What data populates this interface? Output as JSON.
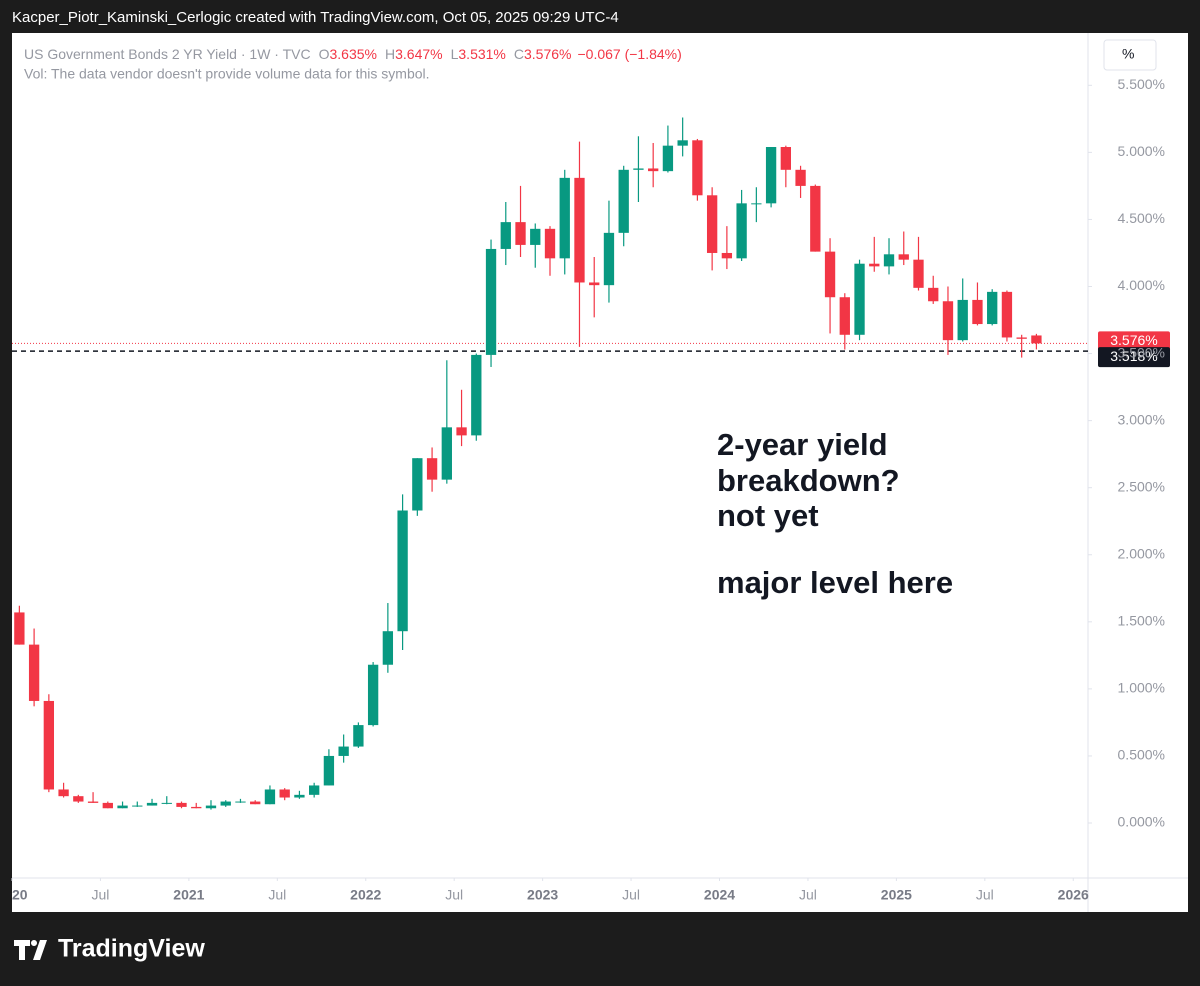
{
  "header": {
    "attribution": "Kacper_Piotr_Kaminski_Cerlogic created with TradingView.com, Oct 05, 2025 09:29 UTC-4"
  },
  "footer": {
    "brand": "TradingView"
  },
  "chart_data": {
    "type": "candlestick",
    "symbol": "US Government Bonds 2 YR Yield · 1W · TVC",
    "ohlc_legend": [
      {
        "key": "O",
        "text": "3.635%"
      },
      {
        "key": "H",
        "text": "3.647%"
      },
      {
        "key": "L",
        "text": "3.531%"
      },
      {
        "key": "C",
        "text": "3.576%"
      }
    ],
    "change_text": "−0.067 (−1.84%)",
    "volume_note": "Vol: The data vendor doesn't provide volume data for this symbol.",
    "axis_unit": "%",
    "annotation": [
      "2-year yield",
      "breakdown?",
      "not yet",
      "major level here"
    ],
    "up_color": "#089981",
    "down_color": "#f23645",
    "x": [
      "2020-01",
      "2020-02",
      "2020-03",
      "2020-04",
      "2020-05",
      "2020-06",
      "2020-07",
      "2020-08",
      "2020-09",
      "2020-10",
      "2020-11",
      "2020-12",
      "2021-01",
      "2021-02",
      "2021-03",
      "2021-04",
      "2021-05",
      "2021-06",
      "2021-07",
      "2021-08",
      "2021-09",
      "2021-10",
      "2021-11",
      "2021-12",
      "2022-01",
      "2022-02",
      "2022-03",
      "2022-04",
      "2022-05",
      "2022-06",
      "2022-07",
      "2022-08",
      "2022-09",
      "2022-10",
      "2022-11",
      "2022-12",
      "2023-01",
      "2023-02",
      "2023-03",
      "2023-04",
      "2023-05",
      "2023-06",
      "2023-07",
      "2023-08",
      "2023-09",
      "2023-10",
      "2023-11",
      "2023-12",
      "2024-01",
      "2024-02",
      "2024-03",
      "2024-04",
      "2024-05",
      "2024-06",
      "2024-07",
      "2024-08",
      "2024-09",
      "2024-10",
      "2024-11",
      "2024-12",
      "2025-01",
      "2025-02",
      "2025-03",
      "2025-04",
      "2025-05",
      "2025-06",
      "2025-07",
      "2025-08",
      "2025-09",
      "2025-10"
    ],
    "open": [
      1.57,
      1.33,
      0.91,
      0.25,
      0.2,
      0.16,
      0.15,
      0.11,
      0.13,
      0.13,
      0.15,
      0.15,
      0.12,
      0.11,
      0.13,
      0.16,
      0.16,
      0.14,
      0.25,
      0.19,
      0.21,
      0.28,
      0.5,
      0.57,
      0.73,
      1.18,
      1.43,
      2.33,
      2.72,
      2.56,
      2.95,
      2.89,
      3.49,
      4.28,
      4.48,
      4.31,
      4.43,
      4.21,
      4.81,
      4.03,
      4.01,
      4.4,
      4.87,
      4.88,
      4.86,
      5.05,
      5.09,
      4.68,
      4.25,
      4.21,
      4.62,
      4.62,
      5.04,
      4.87,
      4.75,
      4.26,
      3.92,
      3.64,
      4.17,
      4.15,
      4.24,
      4.2,
      3.99,
      3.89,
      3.6,
      3.9,
      3.72,
      3.96,
      3.62,
      3.635
    ],
    "high": [
      1.62,
      1.45,
      0.96,
      0.3,
      0.21,
      0.23,
      0.16,
      0.16,
      0.16,
      0.18,
      0.2,
      0.16,
      0.15,
      0.17,
      0.17,
      0.18,
      0.17,
      0.28,
      0.26,
      0.24,
      0.3,
      0.55,
      0.66,
      0.75,
      1.2,
      1.64,
      2.45,
      2.72,
      2.8,
      3.45,
      3.23,
      3.5,
      4.35,
      4.63,
      4.75,
      4.47,
      4.45,
      4.87,
      5.08,
      4.22,
      4.64,
      4.9,
      5.12,
      5.07,
      5.2,
      5.26,
      5.1,
      4.74,
      4.45,
      4.72,
      4.74,
      5.04,
      5.05,
      4.9,
      4.76,
      4.36,
      3.95,
      4.2,
      4.37,
      4.36,
      4.41,
      4.37,
      4.08,
      4.0,
      4.06,
      4.03,
      3.98,
      3.97,
      3.64,
      3.647
    ],
    "low": [
      1.33,
      0.87,
      0.23,
      0.19,
      0.15,
      0.15,
      0.11,
      0.11,
      0.12,
      0.13,
      0.14,
      0.11,
      0.11,
      0.1,
      0.12,
      0.15,
      0.14,
      0.14,
      0.17,
      0.18,
      0.19,
      0.28,
      0.45,
      0.56,
      0.72,
      1.12,
      1.29,
      2.29,
      2.47,
      2.53,
      2.81,
      2.85,
      3.4,
      4.16,
      4.22,
      4.14,
      4.08,
      4.09,
      3.55,
      3.77,
      3.88,
      4.3,
      4.63,
      4.74,
      4.85,
      4.97,
      4.64,
      4.12,
      4.13,
      4.19,
      4.48,
      4.59,
      4.74,
      4.66,
      4.26,
      3.65,
      3.53,
      3.6,
      4.11,
      4.09,
      4.16,
      3.97,
      3.87,
      3.49,
      3.59,
      3.71,
      3.71,
      3.59,
      3.47,
      3.531
    ],
    "close": [
      1.33,
      0.91,
      0.25,
      0.2,
      0.16,
      0.15,
      0.11,
      0.13,
      0.13,
      0.15,
      0.15,
      0.12,
      0.11,
      0.13,
      0.16,
      0.16,
      0.14,
      0.25,
      0.19,
      0.21,
      0.28,
      0.5,
      0.57,
      0.73,
      1.18,
      1.43,
      2.33,
      2.72,
      2.56,
      2.95,
      2.89,
      3.49,
      4.28,
      4.48,
      4.31,
      4.43,
      4.21,
      4.81,
      4.03,
      4.01,
      4.4,
      4.87,
      4.88,
      4.86,
      5.05,
      5.09,
      4.68,
      4.25,
      4.21,
      4.62,
      4.62,
      5.04,
      4.87,
      4.75,
      4.26,
      3.92,
      3.64,
      4.17,
      4.15,
      4.24,
      4.2,
      3.99,
      3.89,
      3.6,
      3.9,
      3.72,
      3.96,
      3.62,
      3.61,
      3.576
    ],
    "xlim": [
      "2020-01",
      "2026-02"
    ],
    "xticks": [
      {
        "value": "2020-01",
        "label": "20"
      },
      {
        "value": "2020-07",
        "label": "Jul"
      },
      {
        "value": "2021-01",
        "label": "2021"
      },
      {
        "value": "2021-07",
        "label": "Jul"
      },
      {
        "value": "2022-01",
        "label": "2022"
      },
      {
        "value": "2022-07",
        "label": "Jul"
      },
      {
        "value": "2023-01",
        "label": "2023"
      },
      {
        "value": "2023-07",
        "label": "Jul"
      },
      {
        "value": "2024-01",
        "label": "2024"
      },
      {
        "value": "2024-07",
        "label": "Jul"
      },
      {
        "value": "2025-01",
        "label": "2025"
      },
      {
        "value": "2025-07",
        "label": "Jul"
      },
      {
        "value": "2026-01",
        "label": "2026"
      }
    ],
    "ylim": [
      -0.41,
      5.89
    ],
    "yticks": [
      {
        "value": 0,
        "label": "0.000%"
      },
      {
        "value": 0.5,
        "label": "0.500%"
      },
      {
        "value": 1,
        "label": "1.000%"
      },
      {
        "value": 1.5,
        "label": "1.500%"
      },
      {
        "value": 2,
        "label": "2.000%"
      },
      {
        "value": 2.5,
        "label": "2.500%"
      },
      {
        "value": 3,
        "label": "3.000%"
      },
      {
        "value": 3.5,
        "label": "3.500%"
      },
      {
        "value": 4,
        "label": "4.000%"
      },
      {
        "value": 4.5,
        "label": "4.500%"
      },
      {
        "value": 5,
        "label": "5.000%"
      },
      {
        "value": 5.5,
        "label": "5.500%"
      }
    ],
    "price_lines": [
      {
        "value": 3.576,
        "label": "3.576%",
        "color": "#f23645",
        "style": "dotted"
      },
      {
        "value": 3.518,
        "label": "3.518%",
        "color": "#131722",
        "style": "dashed"
      }
    ]
  }
}
